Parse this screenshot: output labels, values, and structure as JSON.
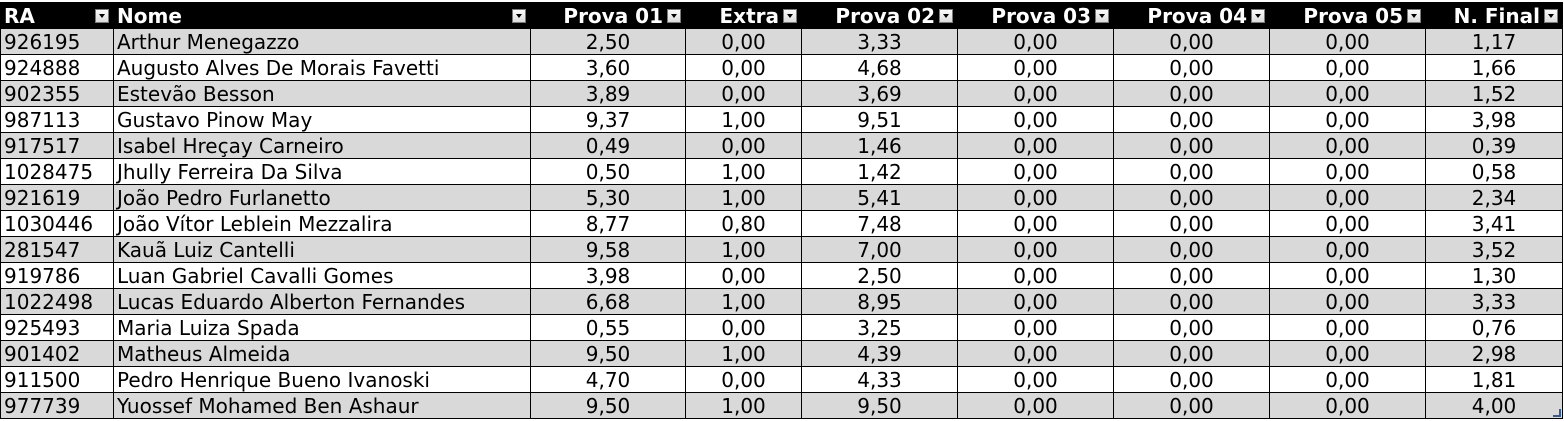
{
  "table": {
    "headers": [
      {
        "label": "RA",
        "key": "ra"
      },
      {
        "label": "Nome",
        "key": "nome"
      },
      {
        "label": "Prova 01",
        "key": "p01"
      },
      {
        "label": "Extra",
        "key": "extra"
      },
      {
        "label": "Prova 02",
        "key": "p02"
      },
      {
        "label": "Prova 03",
        "key": "p03"
      },
      {
        "label": "Prova 04",
        "key": "p04"
      },
      {
        "label": "Prova 05",
        "key": "p05"
      },
      {
        "label": "N. Final",
        "key": "final"
      }
    ],
    "rows": [
      [
        "926195",
        "Arthur Menegazzo",
        "2,50",
        "0,00",
        "3,33",
        "0,00",
        "0,00",
        "0,00",
        "1,17"
      ],
      [
        "924888",
        "Augusto Alves De Morais Favetti",
        "3,60",
        "0,00",
        "4,68",
        "0,00",
        "0,00",
        "0,00",
        "1,66"
      ],
      [
        "902355",
        "Estevão Besson",
        "3,89",
        "0,00",
        "3,69",
        "0,00",
        "0,00",
        "0,00",
        "1,52"
      ],
      [
        "987113",
        "Gustavo Pinow May",
        "9,37",
        "1,00",
        "9,51",
        "0,00",
        "0,00",
        "0,00",
        "3,98"
      ],
      [
        "917517",
        "Isabel Hreçay Carneiro",
        "0,49",
        "0,00",
        "1,46",
        "0,00",
        "0,00",
        "0,00",
        "0,39"
      ],
      [
        "1028475",
        "Jhully Ferreira Da Silva",
        "0,50",
        "1,00",
        "1,42",
        "0,00",
        "0,00",
        "0,00",
        "0,58"
      ],
      [
        "921619",
        "João Pedro Furlanetto",
        "5,30",
        "1,00",
        "5,41",
        "0,00",
        "0,00",
        "0,00",
        "2,34"
      ],
      [
        "1030446",
        "João Vítor Leblein Mezzalira",
        "8,77",
        "0,80",
        "7,48",
        "0,00",
        "0,00",
        "0,00",
        "3,41"
      ],
      [
        "281547",
        "Kauã Luiz Cantelli",
        "9,58",
        "1,00",
        "7,00",
        "0,00",
        "0,00",
        "0,00",
        "3,52"
      ],
      [
        "919786",
        "Luan Gabriel Cavalli Gomes",
        "3,98",
        "0,00",
        "2,50",
        "0,00",
        "0,00",
        "0,00",
        "1,30"
      ],
      [
        "1022498",
        "Lucas Eduardo Alberton Fernandes",
        "6,68",
        "1,00",
        "8,95",
        "0,00",
        "0,00",
        "0,00",
        "3,33"
      ],
      [
        "925493",
        "Maria Luiza Spada",
        "0,55",
        "0,00",
        "3,25",
        "0,00",
        "0,00",
        "0,00",
        "0,76"
      ],
      [
        "901402",
        "Matheus Almeida",
        "9,50",
        "1,00",
        "4,39",
        "0,00",
        "0,00",
        "0,00",
        "2,98"
      ],
      [
        "911500",
        "Pedro Henrique Bueno Ivanoski",
        "4,70",
        "0,00",
        "4,33",
        "0,00",
        "0,00",
        "0,00",
        "1,81"
      ],
      [
        "977739",
        "Yuossef Mohamed Ben Ashaur",
        "9,50",
        "1,00",
        "9,50",
        "0,00",
        "0,00",
        "0,00",
        "4,00"
      ]
    ]
  },
  "colors": {
    "header_bg": "#000000",
    "header_fg": "#ffffff",
    "band_row": "#d9d9d9",
    "plain_row": "#ffffff"
  },
  "icons": {
    "filter": "filter-dropdown-icon"
  }
}
